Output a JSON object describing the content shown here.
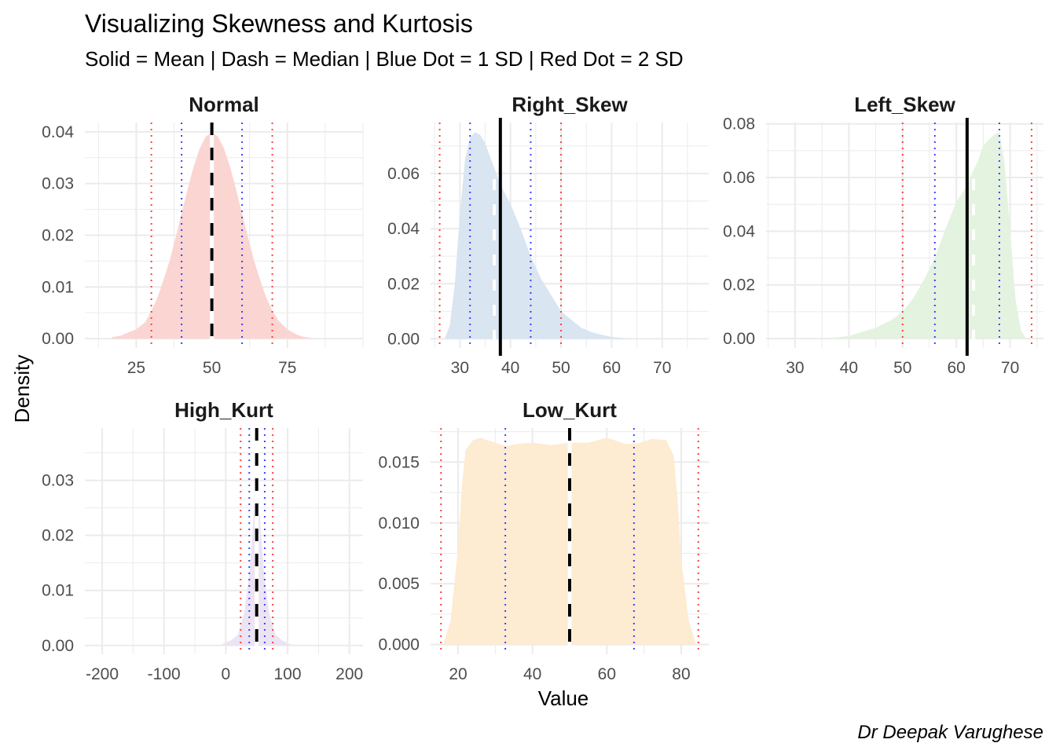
{
  "chart_data": {
    "type": "area",
    "title": "Visualizing Skewness and Kurtosis",
    "subtitle": "Solid = Mean | Dash = Median | Blue Dot = 1 SD | Red Dot = 2 SD",
    "xlabel": "Value",
    "ylabel": "Density",
    "caption": "Dr Deepak Varughese",
    "grid": true,
    "line_colors": {
      "mean": "#000000",
      "median": "#000000",
      "sd1": "#4040ff",
      "sd2": "#ff4040"
    },
    "panels": [
      {
        "name": "Normal",
        "fill": "#fbd5d1",
        "xlim": [
          8,
          100
        ],
        "ylim": [
          -0.0018,
          0.0418
        ],
        "xticks": [
          25,
          50,
          75
        ],
        "xtick_labels": [
          "25",
          "50",
          "75"
        ],
        "yticks": [
          0.0,
          0.01,
          0.02,
          0.03,
          0.04
        ],
        "ytick_labels": [
          "0.00",
          "0.01",
          "0.02",
          "0.03",
          "0.04"
        ],
        "mean": 50,
        "median": 50,
        "sd1": [
          40,
          60
        ],
        "sd2": [
          30,
          70
        ],
        "median_style": "black",
        "x": [
          17,
          20,
          22,
          25,
          28,
          30,
          32,
          34,
          36,
          38,
          40,
          42,
          44,
          46,
          48,
          50,
          52,
          54,
          56,
          58,
          60,
          62,
          64,
          66,
          68,
          70,
          72,
          75,
          78,
          80,
          83
        ],
        "y": [
          0.0003,
          0.0006,
          0.0011,
          0.0018,
          0.0032,
          0.0054,
          0.0079,
          0.0113,
          0.015,
          0.0195,
          0.0242,
          0.0289,
          0.0333,
          0.0368,
          0.0391,
          0.0399,
          0.0391,
          0.0368,
          0.0333,
          0.0289,
          0.0242,
          0.0195,
          0.015,
          0.0113,
          0.0079,
          0.0054,
          0.0035,
          0.0018,
          0.0008,
          0.0004,
          0.0001
        ]
      },
      {
        "name": "Right_Skew",
        "fill": "#d9e5f1",
        "xlim": [
          24.2,
          79.2
        ],
        "ylim": [
          -0.0033,
          0.0785
        ],
        "xticks": [
          30,
          40,
          50,
          60,
          70
        ],
        "xtick_labels": [
          "30",
          "40",
          "50",
          "60",
          "70"
        ],
        "yticks": [
          0.0,
          0.02,
          0.04,
          0.06
        ],
        "ytick_labels": [
          "0.00",
          "0.02",
          "0.04",
          "0.06"
        ],
        "mean": 38,
        "median": 36.8,
        "sd1": [
          32,
          44
        ],
        "sd2": [
          26,
          50
        ],
        "median_style": "white",
        "x": [
          27,
          28,
          29,
          30,
          31,
          32,
          33,
          34,
          35,
          36,
          37,
          38,
          40,
          42,
          44,
          46,
          48,
          50,
          52,
          54,
          56,
          58,
          60,
          63,
          64
        ],
        "y": [
          0.0,
          0.005,
          0.02,
          0.045,
          0.065,
          0.073,
          0.075,
          0.074,
          0.071,
          0.066,
          0.061,
          0.056,
          0.049,
          0.04,
          0.03,
          0.022,
          0.016,
          0.01,
          0.007,
          0.004,
          0.0025,
          0.0015,
          0.0007,
          0.0002,
          0.0
        ]
      },
      {
        "name": "Left_Skew",
        "fill": "#e3f3df",
        "xlim": [
          24.6,
          76.2
        ],
        "ylim": [
          -0.0035,
          0.0805
        ],
        "xticks": [
          30,
          40,
          50,
          60,
          70
        ],
        "xtick_labels": [
          "30",
          "40",
          "50",
          "60",
          "70"
        ],
        "yticks": [
          0.0,
          0.02,
          0.04,
          0.06,
          0.08
        ],
        "ytick_labels": [
          "0.00",
          "0.02",
          "0.04",
          "0.06",
          "0.08"
        ],
        "mean": 62,
        "median": 63.2,
        "sd1": [
          56,
          68
        ],
        "sd2": [
          50,
          74
        ],
        "median_style": "white",
        "x": [
          36,
          40,
          45,
          48,
          50,
          52,
          54,
          56,
          58,
          60,
          62,
          63,
          64,
          65,
          67,
          68,
          69,
          70,
          71,
          72,
          73
        ],
        "y": [
          0.0,
          0.001,
          0.004,
          0.007,
          0.01,
          0.015,
          0.022,
          0.03,
          0.041,
          0.051,
          0.057,
          0.062,
          0.066,
          0.072,
          0.076,
          0.077,
          0.065,
          0.04,
          0.015,
          0.003,
          0.0
        ]
      },
      {
        "name": "High_Kurt",
        "fill": "#ece4f2",
        "xlim": [
          -228,
          222
        ],
        "ylim": [
          -0.0016,
          0.0395
        ],
        "xticks": [
          -200,
          -100,
          0,
          100,
          200
        ],
        "xtick_labels": [
          "-200",
          "-100",
          "0",
          "100",
          "200"
        ],
        "yticks": [
          0.0,
          0.01,
          0.02,
          0.03
        ],
        "ytick_labels": [
          "0.00",
          "0.01",
          "0.02",
          "0.03"
        ],
        "mean": 50,
        "median": 50,
        "sd1": [
          38,
          63
        ],
        "sd2": [
          24,
          76
        ],
        "median_style": "black",
        "x": [
          -10,
          0,
          10,
          20,
          30,
          38,
          44,
          48,
          50,
          52,
          56,
          62,
          70,
          80,
          90,
          100,
          110
        ],
        "y": [
          0.0,
          0.0005,
          0.001,
          0.002,
          0.006,
          0.013,
          0.022,
          0.03,
          0.034,
          0.03,
          0.022,
          0.013,
          0.006,
          0.002,
          0.001,
          0.0004,
          0.0
        ]
      },
      {
        "name": "Low_Kurt",
        "fill": "#fdebd2",
        "xlim": [
          12.6,
          87.4
        ],
        "ylim": [
          -0.0008,
          0.0178
        ],
        "xticks": [
          20,
          40,
          60,
          80
        ],
        "xtick_labels": [
          "20",
          "40",
          "60",
          "80"
        ],
        "yticks": [
          0.0,
          0.005,
          0.01,
          0.015
        ],
        "ytick_labels": [
          "0.000",
          "0.005",
          "0.010",
          "0.015"
        ],
        "mean": 50,
        "median": 50,
        "sd1": [
          32.7,
          67.3
        ],
        "sd2": [
          15.4,
          84.6
        ],
        "median_style": "black",
        "x": [
          16,
          18,
          20,
          21,
          22,
          24,
          26,
          30,
          33,
          36,
          40,
          45,
          50,
          55,
          60,
          65,
          68,
          72,
          76,
          78,
          79,
          80,
          82,
          84
        ],
        "y": [
          0.0,
          0.002,
          0.008,
          0.013,
          0.016,
          0.0168,
          0.017,
          0.0166,
          0.0163,
          0.0165,
          0.0166,
          0.0164,
          0.0166,
          0.0166,
          0.017,
          0.0165,
          0.0165,
          0.0169,
          0.0168,
          0.0155,
          0.012,
          0.007,
          0.002,
          0.0
        ]
      }
    ]
  }
}
